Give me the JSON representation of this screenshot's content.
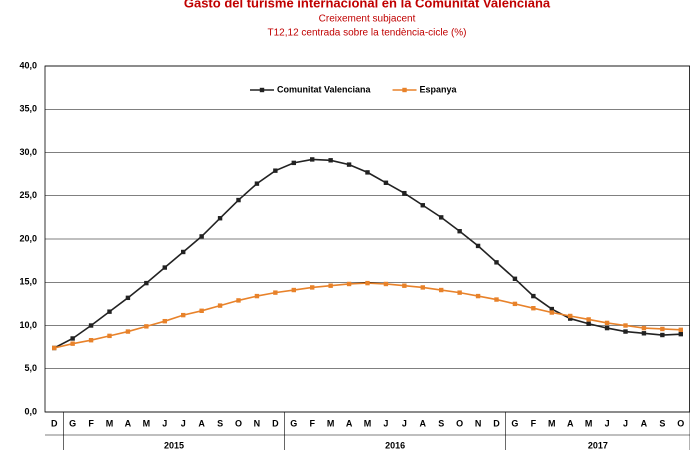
{
  "chart_data": {
    "type": "line",
    "title": "Gasto del turisme internacional en la Comunitat Valenciana",
    "subtitle": [
      "Creixement subjacent",
      "T12,12 centrada sobre la tendència-cicle (%)"
    ],
    "categories": [
      "D",
      "G",
      "F",
      "M",
      "A",
      "M",
      "J",
      "J",
      "A",
      "S",
      "O",
      "N",
      "D",
      "G",
      "F",
      "M",
      "A",
      "M",
      "J",
      "J",
      "A",
      "S",
      "O",
      "N",
      "D",
      "G",
      "F",
      "M",
      "A",
      "M",
      "J",
      "J",
      "A",
      "S",
      "O"
    ],
    "x_groups": [
      {
        "label": "2015",
        "span": [
          1,
          12
        ]
      },
      {
        "label": "2016",
        "span": [
          13,
          24
        ]
      },
      {
        "label": "2017",
        "span": [
          25,
          34
        ]
      }
    ],
    "series": [
      {
        "name": "Comunitat Valenciana",
        "color": "#222222",
        "values": [
          7.4,
          8.5,
          10.0,
          11.6,
          13.2,
          14.9,
          16.7,
          18.5,
          20.3,
          22.4,
          24.5,
          26.4,
          27.9,
          28.8,
          29.2,
          29.1,
          28.6,
          27.7,
          26.5,
          25.3,
          23.9,
          22.5,
          20.9,
          19.2,
          17.3,
          15.4,
          13.4,
          11.9,
          10.8,
          10.2,
          9.7,
          9.3,
          9.1,
          8.9,
          9.0
        ]
      },
      {
        "name": "Espanya",
        "color": "#e8822a",
        "values": [
          7.4,
          7.9,
          8.3,
          8.8,
          9.3,
          9.9,
          10.5,
          11.2,
          11.7,
          12.3,
          12.9,
          13.4,
          13.8,
          14.1,
          14.4,
          14.6,
          14.8,
          14.9,
          14.8,
          14.6,
          14.4,
          14.1,
          13.8,
          13.4,
          13.0,
          12.5,
          12.0,
          11.5,
          11.1,
          10.7,
          10.3,
          10.0,
          9.7,
          9.6,
          9.5
        ]
      }
    ],
    "ylim": [
      0,
      40
    ],
    "yticks": [
      {
        "value": 0,
        "label": "0,0"
      },
      {
        "value": 5,
        "label": "5,0"
      },
      {
        "value": 10,
        "label": "10,0"
      },
      {
        "value": 15,
        "label": "15,0"
      },
      {
        "value": 20,
        "label": "20,0"
      },
      {
        "value": 25,
        "label": "25,0"
      },
      {
        "value": 30,
        "label": "30,0"
      },
      {
        "value": 35,
        "label": "35,0"
      },
      {
        "value": 40,
        "label": "40,0"
      }
    ],
    "grid": true,
    "legend": "top"
  }
}
